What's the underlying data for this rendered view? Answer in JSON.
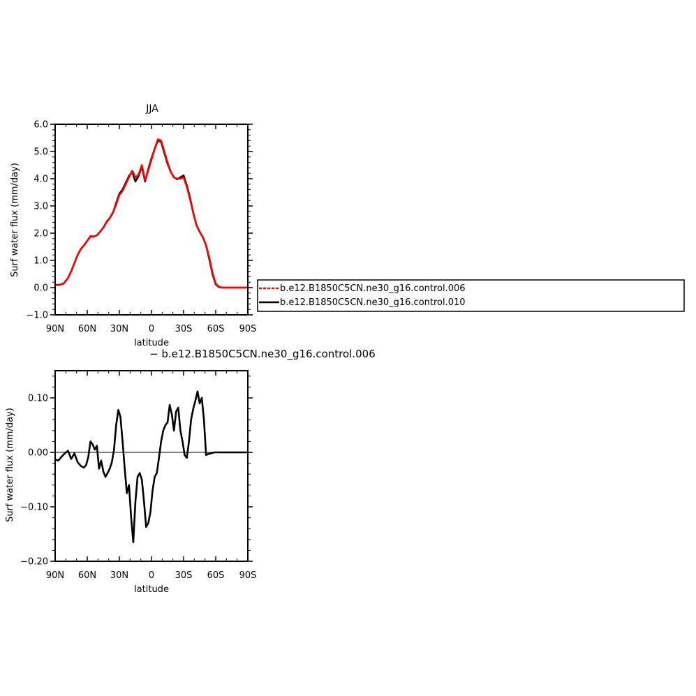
{
  "chart_data": [
    {
      "type": "line",
      "title": "JJA",
      "xlabel": "latitude",
      "ylabel": "Surf water flux (mm/day)",
      "xlim": [
        90,
        -90
      ],
      "ylim": [
        -1.0,
        6.0
      ],
      "x_tick_values": [
        90,
        60,
        30,
        0,
        -30,
        -60,
        -90
      ],
      "x_tick_labels": [
        "90N",
        "60N",
        "30N",
        "0",
        "30S",
        "60S",
        "90S"
      ],
      "y_tick_values": [
        -1,
        0,
        1,
        2,
        3,
        4,
        5,
        6
      ],
      "y_tick_labels": [
        "−1.0",
        "0.0",
        "1.0",
        "2.0",
        "3.0",
        "4.0",
        "5.0",
        "6.0"
      ],
      "grid": false,
      "legend_position": "right",
      "series": [
        {
          "name": "b.e12.B1850C5CN.ne30_g16.control.010",
          "color": "#000000",
          "dash": "solid",
          "x": [
            90,
            86,
            82,
            78,
            75,
            72,
            69,
            66,
            63,
            60,
            57,
            54,
            51,
            48,
            45,
            42,
            39,
            36,
            33,
            30,
            27,
            24,
            21,
            18,
            15,
            12,
            9,
            6,
            3,
            0,
            -3,
            -6,
            -9,
            -12,
            -15,
            -18,
            -21,
            -24,
            -27,
            -30,
            -33,
            -36,
            -39,
            -42,
            -45,
            -48,
            -51,
            -54,
            -57,
            -60,
            -63,
            -66,
            -69,
            -72,
            -75,
            -78,
            -81,
            -84,
            -87,
            -90
          ],
          "y": [
            0.1,
            0.1,
            0.15,
            0.35,
            0.6,
            0.9,
            1.2,
            1.42,
            1.55,
            1.72,
            1.87,
            1.87,
            1.92,
            2.05,
            2.2,
            2.4,
            2.55,
            2.75,
            3.1,
            3.45,
            3.6,
            3.85,
            4.1,
            4.25,
            3.9,
            4.1,
            4.45,
            3.9,
            4.35,
            4.75,
            5.1,
            5.4,
            5.35,
            4.95,
            4.55,
            4.25,
            4.05,
            3.98,
            4.05,
            4.12,
            3.75,
            3.3,
            2.75,
            2.3,
            2.05,
            1.85,
            1.55,
            1.05,
            0.5,
            0.12,
            0.02,
            0.0,
            0.0,
            0.0,
            0.0,
            0.0,
            0.0,
            0.0,
            0.0,
            0.0
          ]
        },
        {
          "name": "b.e12.B1850C5CN.ne30_g16.control.006",
          "color": "#ff0000",
          "dash": "dashed",
          "x": [
            90,
            86,
            82,
            78,
            75,
            72,
            69,
            66,
            63,
            60,
            57,
            54,
            51,
            48,
            45,
            42,
            39,
            36,
            33,
            30,
            27,
            24,
            21,
            18,
            15,
            12,
            9,
            6,
            3,
            0,
            -3,
            -6,
            -9,
            -12,
            -15,
            -18,
            -21,
            -24,
            -27,
            -30,
            -33,
            -36,
            -39,
            -42,
            -45,
            -48,
            -51,
            -54,
            -57,
            -60,
            -63,
            -66,
            -69,
            -72,
            -75,
            -78,
            -81,
            -84,
            -87,
            -90
          ],
          "y": [
            0.09,
            0.1,
            0.16,
            0.35,
            0.6,
            0.9,
            1.2,
            1.42,
            1.55,
            1.72,
            1.89,
            1.88,
            1.92,
            2.05,
            2.2,
            2.42,
            2.56,
            2.76,
            3.05,
            3.4,
            3.55,
            3.8,
            4.05,
            4.3,
            4.05,
            4.15,
            4.5,
            3.95,
            4.3,
            4.7,
            5.1,
            5.45,
            5.4,
            5.0,
            4.6,
            4.25,
            4.05,
            4.0,
            4.0,
            4.05,
            3.7,
            3.25,
            2.75,
            2.3,
            2.05,
            1.85,
            1.55,
            1.1,
            0.55,
            0.15,
            0.03,
            0.0,
            0.0,
            0.0,
            0.0,
            0.0,
            0.0,
            0.0,
            0.0,
            0.0
          ]
        }
      ]
    },
    {
      "type": "line",
      "title": "− b.e12.B1850C5CN.ne30_g16.control.006",
      "xlabel": "latitude",
      "ylabel": "Surf water flux (mm/day)",
      "xlim": [
        90,
        -90
      ],
      "ylim": [
        -0.2,
        0.15
      ],
      "x_tick_values": [
        90,
        60,
        30,
        0,
        -30,
        -60,
        -90
      ],
      "x_tick_labels": [
        "90N",
        "60N",
        "30N",
        "0",
        "30S",
        "60S",
        "90S"
      ],
      "y_tick_values": [
        -0.2,
        -0.1,
        0.0,
        0.1
      ],
      "y_tick_labels": [
        "−0.20",
        "−0.10",
        "0.00",
        "0.10"
      ],
      "grid": false,
      "series": [
        {
          "color": "#000000",
          "dash": "solid",
          "x": [
            90,
            87,
            84,
            81,
            78,
            75,
            72,
            69,
            66,
            63,
            61,
            59,
            57,
            55,
            53,
            51,
            49,
            47,
            45,
            43,
            41,
            39,
            37,
            35,
            33,
            31,
            29,
            27,
            25,
            23,
            21,
            19,
            17,
            15,
            13,
            11,
            9,
            7,
            5,
            3,
            1,
            -1,
            -3,
            -5,
            -7,
            -9,
            -11,
            -13,
            -15,
            -17,
            -19,
            -21,
            -23,
            -25,
            -27,
            -29,
            -31,
            -33,
            -35,
            -37,
            -39,
            -41,
            -43,
            -45,
            -47,
            -49,
            -51,
            -53,
            -55,
            -57,
            -59,
            -61,
            -63,
            -65,
            -67,
            -69,
            -72,
            -75,
            -78,
            -81,
            -84,
            -87,
            -90
          ],
          "y": [
            -0.013,
            -0.015,
            -0.008,
            -0.002,
            0.003,
            -0.012,
            -0.002,
            -0.018,
            -0.025,
            -0.028,
            -0.023,
            -0.008,
            0.02,
            0.015,
            0.005,
            0.012,
            -0.03,
            -0.015,
            -0.035,
            -0.045,
            -0.038,
            -0.03,
            -0.018,
            0.005,
            0.05,
            0.078,
            0.065,
            0.02,
            -0.03,
            -0.075,
            -0.06,
            -0.12,
            -0.165,
            -0.09,
            -0.045,
            -0.038,
            -0.05,
            -0.09,
            -0.137,
            -0.13,
            -0.11,
            -0.07,
            -0.045,
            -0.038,
            -0.01,
            0.02,
            0.04,
            0.05,
            0.055,
            0.087,
            0.07,
            0.04,
            0.075,
            0.082,
            0.04,
            0.02,
            -0.005,
            -0.01,
            0.02,
            0.06,
            0.08,
            0.095,
            0.112,
            0.09,
            0.1,
            0.06,
            -0.005,
            -0.003,
            -0.002,
            -0.001,
            0.0,
            0.0,
            0.0,
            0.0,
            0.0,
            0.0,
            0.0,
            0.0,
            0.0,
            0.0,
            0.0,
            0.0,
            0.0
          ]
        }
      ]
    }
  ]
}
